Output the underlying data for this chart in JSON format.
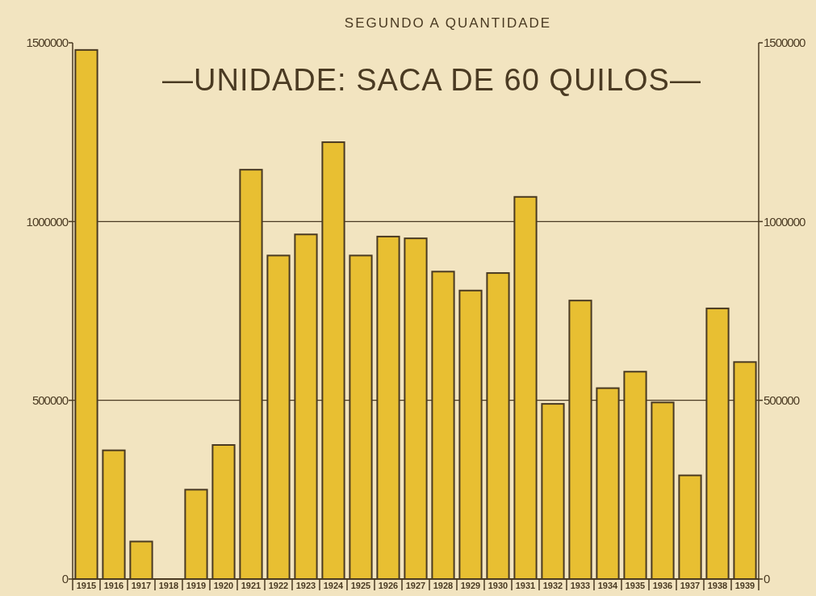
{
  "chart_data": {
    "type": "bar",
    "title": "SEGUNDO A QUANTIDADE",
    "subtitle": "—UNIDADE: SACA  DE 60 QUILOS—",
    "categories": [
      "1915",
      "1916",
      "1917",
      "1918",
      "1919",
      "1920",
      "1921",
      "1922",
      "1923",
      "1924",
      "1925",
      "1926",
      "1927",
      "1928",
      "1929",
      "1930",
      "1931",
      "1932",
      "1933",
      "1934",
      "1935",
      "1936",
      "1937",
      "1938",
      "1939"
    ],
    "values": [
      1480000,
      360000,
      105000,
      0,
      250000,
      375000,
      1145000,
      905000,
      964000,
      1222000,
      905000,
      958000,
      953000,
      860000,
      807000,
      856000,
      1069000,
      490000,
      779000,
      534000,
      580000,
      494000,
      290000,
      757000,
      607000
    ],
    "color": "#e8bf32",
    "ylim": [
      0,
      1500000
    ],
    "yticks": [
      0,
      500000,
      1000000,
      1500000
    ],
    "y2lim": [
      0,
      1500000
    ],
    "y2ticks": [
      0,
      500000,
      1000000,
      1500000
    ],
    "grid": "y"
  }
}
